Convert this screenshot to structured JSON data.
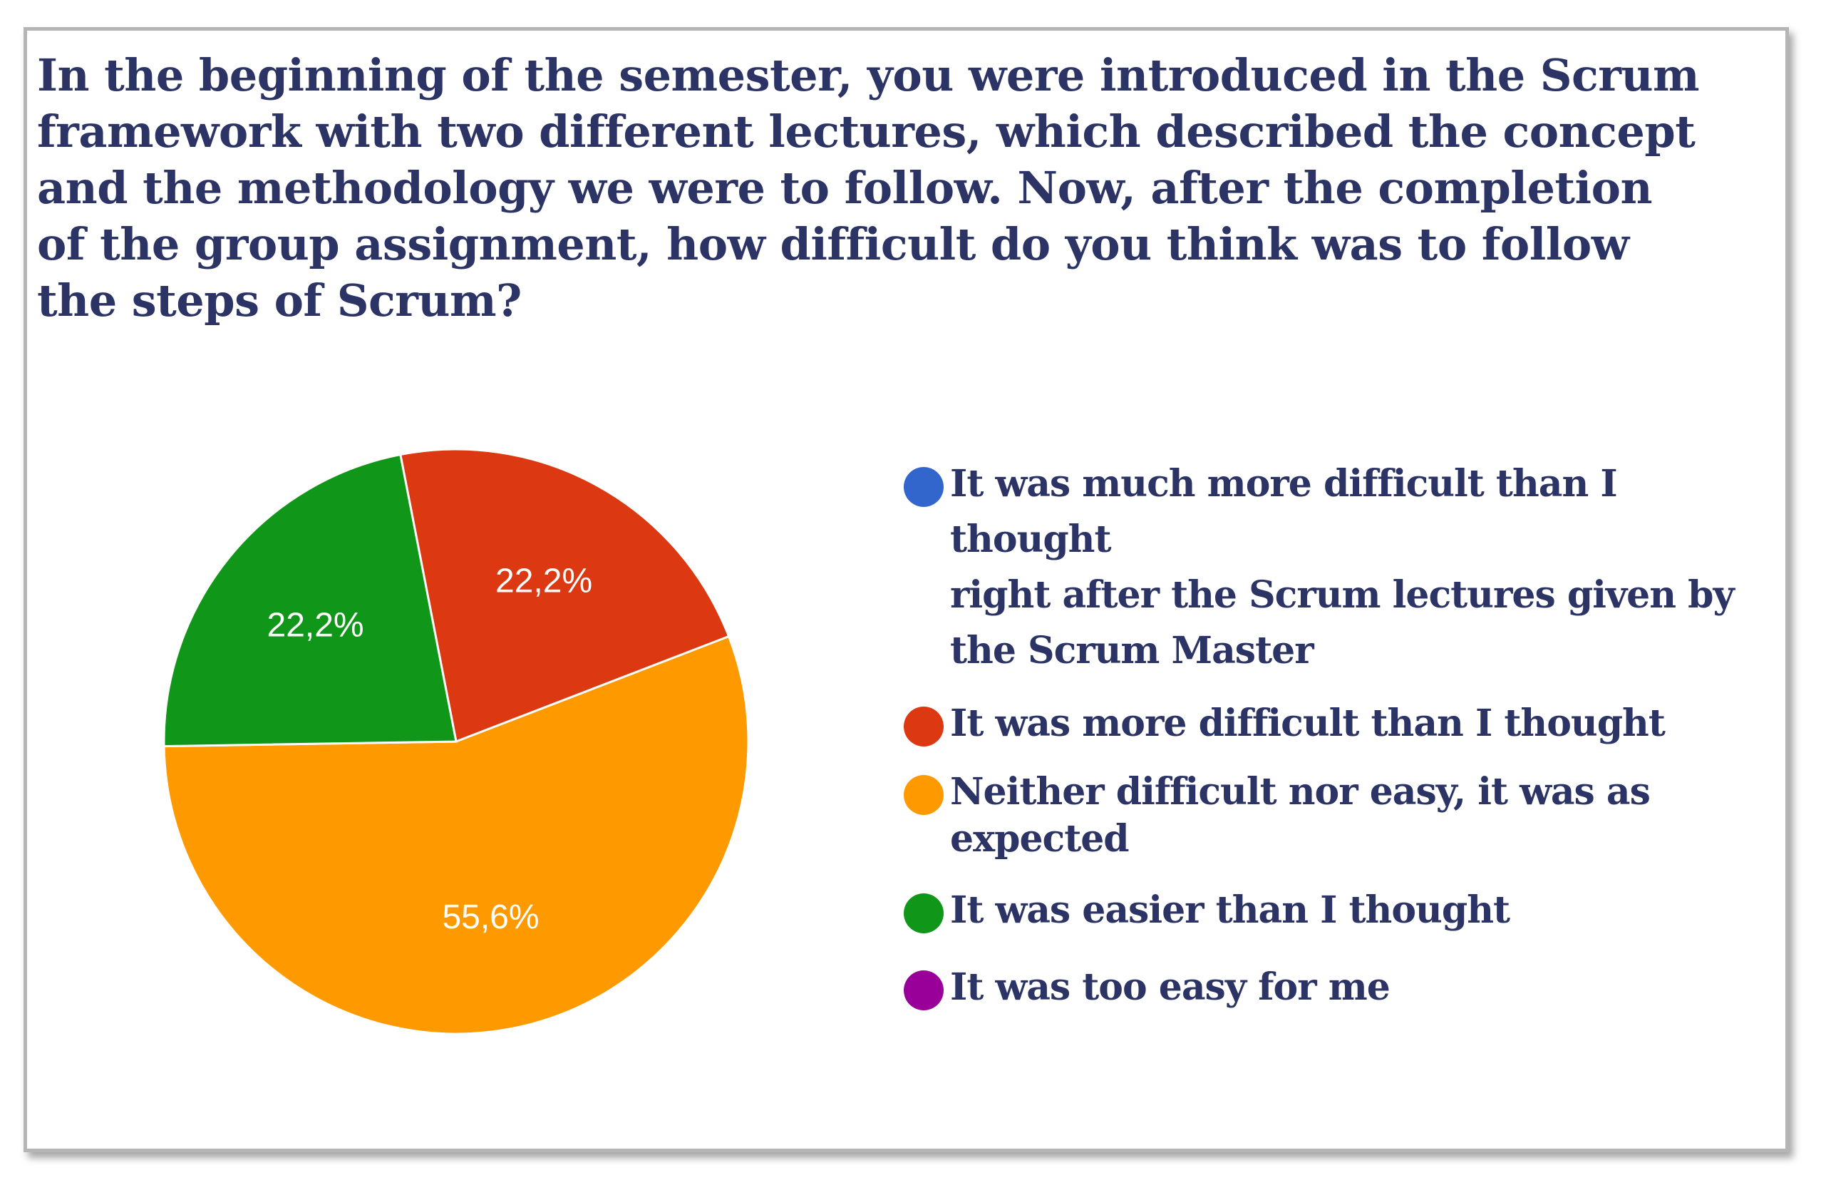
{
  "question": "In the beginning of the semester, you were introduced in  the Scrum\nframework with two different lectures, which described the concept\nand the methodology we were to follow. Now, after the completion\nof the group assignment, how difficult do you think was to follow\nthe steps of Scrum?",
  "chart_data": {
    "type": "pie",
    "title": "In the beginning of the semester, you were introduced in  the Scrum framework with two different lectures, which described the concept and the methodology we were to follow. Now, after the completion of the group assignment, how difficult do you think was to follow the steps of Scrum?",
    "legend_position": "right",
    "start_angle_deg": -11,
    "direction": "clockwise",
    "slices": [
      {
        "name": "It was much more difficult than I thought\nright after the Scrum lectures given by\nthe   Scrum Master",
        "value": 0,
        "color": "#3366cc",
        "label": ""
      },
      {
        "name": "It was more difficult than I thought",
        "value": 22.2,
        "color": "#dc3912",
        "label": "22,2%"
      },
      {
        "name": "Neither difficult nor easy, it was as\nexpected",
        "value": 55.6,
        "color": "#ff9900",
        "label": "55,6%"
      },
      {
        "name": "It was easier than I thought",
        "value": 22.2,
        "color": "#109618",
        "label": "22,2%"
      },
      {
        "name": "It was too easy for me",
        "value": 0,
        "color": "#990099",
        "label": ""
      }
    ]
  }
}
